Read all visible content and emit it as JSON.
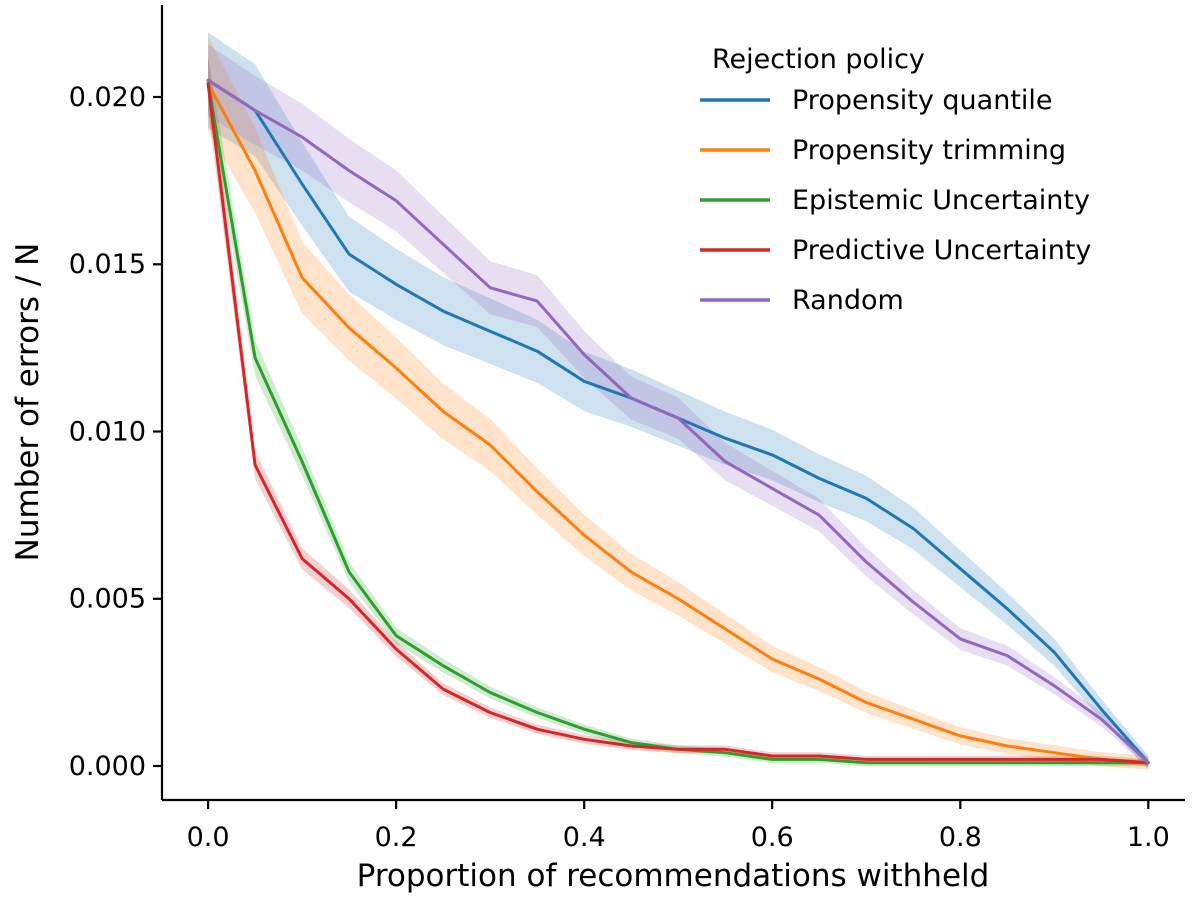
{
  "figure": {
    "background": "#ffffff",
    "text_color": "#000000"
  },
  "chart_data": {
    "type": "line",
    "title": "",
    "xlabel": "Proportion of recommendations withheld",
    "ylabel": "Number of errors / N",
    "legend_title": "Rejection policy",
    "legend_position": "upper right inside",
    "grid": false,
    "xlim": [
      -0.049,
      1.039
    ],
    "ylim": [
      -0.001015,
      0.02275
    ],
    "xticks": {
      "values": [
        0.0,
        0.2,
        0.4,
        0.6,
        0.8,
        1.0
      ],
      "labels": [
        "0.0",
        "0.2",
        "0.4",
        "0.6",
        "0.8",
        "1.0"
      ]
    },
    "yticks": {
      "values": [
        0.0,
        0.005,
        0.01,
        0.015,
        0.02
      ],
      "labels": [
        "0.000",
        "0.005",
        "0.010",
        "0.015",
        "0.020"
      ]
    },
    "x": [
      0.0,
      0.05,
      0.1,
      0.15,
      0.2,
      0.25,
      0.3,
      0.35,
      0.4,
      0.45,
      0.5,
      0.55,
      0.6,
      0.65,
      0.7,
      0.75,
      0.8,
      0.85,
      0.9,
      0.95,
      1.0
    ],
    "series": [
      {
        "name": "Propensity quantile",
        "color": "#1f77b4",
        "values": [
          0.0205,
          0.0196,
          0.0174,
          0.0153,
          0.0144,
          0.0136,
          0.013,
          0.0124,
          0.0115,
          0.011,
          0.0104,
          0.0098,
          0.0093,
          0.0086,
          0.008,
          0.0071,
          0.0059,
          0.0047,
          0.0034,
          0.0017,
          0.0001
        ],
        "band": {
          "frac": 0.06,
          "min": 0.0002
        }
      },
      {
        "name": "Propensity trimming",
        "color": "#ff7f0e",
        "values": [
          0.0204,
          0.0178,
          0.0146,
          0.0131,
          0.0119,
          0.0106,
          0.0096,
          0.0082,
          0.0069,
          0.0058,
          0.005,
          0.0041,
          0.0032,
          0.0026,
          0.0019,
          0.0014,
          0.0009,
          0.0006,
          0.0004,
          0.0002,
          0.0001
        ],
        "band": {
          "frac": 0.06,
          "min": 0.0002
        }
      },
      {
        "name": "Epistemic Uncertainty",
        "color": "#2ca02c",
        "values": [
          0.0204,
          0.0122,
          0.0091,
          0.0058,
          0.0039,
          0.003,
          0.0022,
          0.0016,
          0.0011,
          0.0007,
          0.0005,
          0.0004,
          0.0002,
          0.0002,
          0.0001,
          0.0001,
          0.0001,
          0.0001,
          0.0001,
          0.0001,
          0.0001
        ],
        "band": {
          "frac": 0.035,
          "min": 0.0001
        }
      },
      {
        "name": "Predictive Uncertainty",
        "color": "#d62728",
        "values": [
          0.0204,
          0.009,
          0.0062,
          0.005,
          0.0035,
          0.0023,
          0.0016,
          0.0011,
          0.0008,
          0.0006,
          0.0005,
          0.0005,
          0.0003,
          0.0003,
          0.0002,
          0.0002,
          0.0002,
          0.0002,
          0.0002,
          0.0002,
          0.0001
        ],
        "band": {
          "frac": 0.035,
          "min": 0.0001
        }
      },
      {
        "name": "Random",
        "color": "#9467bd",
        "values": [
          0.0205,
          0.0196,
          0.0188,
          0.0178,
          0.0169,
          0.0156,
          0.0143,
          0.0139,
          0.0123,
          0.011,
          0.0104,
          0.0091,
          0.0083,
          0.0075,
          0.0061,
          0.0049,
          0.0038,
          0.0033,
          0.0024,
          0.0014,
          0.0001
        ],
        "band": {
          "frac": 0.045,
          "min": 0.00015
        }
      }
    ]
  }
}
